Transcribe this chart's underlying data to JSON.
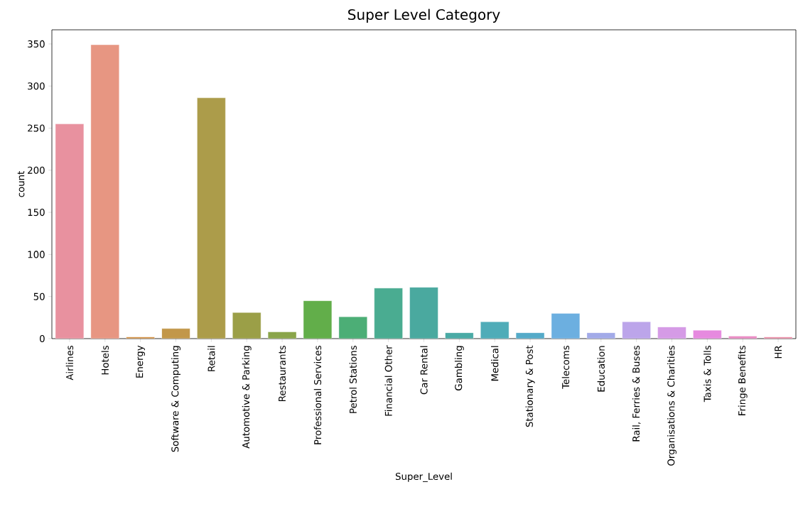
{
  "chart_data": {
    "type": "bar",
    "title": "Super Level Category",
    "xlabel": "Super_Level",
    "ylabel": "count",
    "categories": [
      "Airlines",
      "Hotels",
      "Energy",
      "Software & Computing",
      "Retail",
      "Automotive & Parking",
      "Restaurants",
      "Professional Services",
      "Petrol Stations",
      "Financial Other",
      "Car Rental",
      "Gambling",
      "Medical",
      "Stationary & Post",
      "Telecoms",
      "Education",
      "Rail, Ferries & Buses",
      "Organisations & Charities",
      "Taxis & Tolls",
      "Fringe Benefits",
      "HR"
    ],
    "values": [
      255,
      349,
      2,
      12,
      286,
      31,
      8,
      45,
      26,
      60,
      61,
      7,
      20,
      7,
      30,
      7,
      20,
      14,
      10,
      3,
      2
    ],
    "colors": [
      "#e8919f",
      "#e79682",
      "#d08f44",
      "#c2974a",
      "#ac9c4a",
      "#9b9f47",
      "#8aa54a",
      "#62ae4a",
      "#4cae76",
      "#4aac91",
      "#4aa99f",
      "#4aaaa5",
      "#4facb8",
      "#54aac8",
      "#6cafe0",
      "#a2aae8",
      "#bca5ea",
      "#d59be6",
      "#e68adf",
      "#e98bc3",
      "#e88ca5"
    ],
    "ylim": [
      0,
      366.8
    ],
    "yticks": [
      0,
      50,
      100,
      150,
      200,
      250,
      300,
      350
    ]
  }
}
